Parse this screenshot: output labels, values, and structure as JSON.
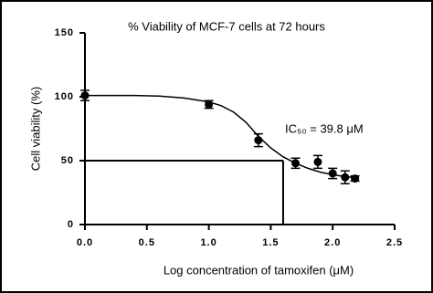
{
  "chart_data": {
    "type": "scatter",
    "title": "% Viability of MCF-7 cells at 72 hours",
    "xlabel": "Log concentration of tamoxifen (μM)",
    "ylabel": "Cell viability (%)",
    "annotation": "IC₅₀ = 39.8 μM",
    "x": [
      0,
      1.0,
      1.4,
      1.7,
      1.88,
      2.0,
      2.1,
      2.18
    ],
    "series": [
      {
        "color": "#000000",
        "values": [
          101,
          94,
          66,
          48,
          49,
          40,
          37,
          36
        ],
        "errors": [
          4,
          3,
          5,
          4,
          5,
          4,
          5,
          2
        ]
      }
    ],
    "fit": {
      "x": [
        0,
        0.2,
        0.4,
        0.6,
        0.8,
        1.0,
        1.1,
        1.2,
        1.3,
        1.4,
        1.5,
        1.6,
        1.7,
        1.8,
        1.9,
        2.0,
        2.1,
        2.2
      ],
      "values": [
        101,
        101,
        101,
        100.5,
        99,
        96,
        93,
        88,
        80,
        69,
        60,
        53,
        48,
        44,
        41,
        39,
        37.5,
        36.5
      ]
    },
    "reference": {
      "x": 1.6,
      "y": 50
    },
    "xlim": [
      0,
      2.5
    ],
    "ylim": [
      0,
      150
    ],
    "xticks": [
      {
        "value": 0,
        "label": "0.0"
      },
      {
        "value": 0.5,
        "label": "0.5"
      },
      {
        "value": 1,
        "label": "1.0"
      },
      {
        "value": 1.5,
        "label": "1.5"
      },
      {
        "value": 2,
        "label": "2.0"
      },
      {
        "value": 2.5,
        "label": "2.5"
      }
    ],
    "yticks": [
      0,
      50,
      100,
      150
    ]
  }
}
